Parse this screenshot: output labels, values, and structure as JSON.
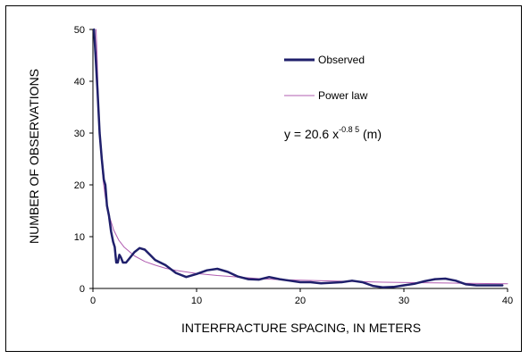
{
  "chart_data": {
    "type": "line",
    "title": "",
    "xlabel": "INTERFRACTURE SPACING, IN METERS",
    "ylabel": "NUMBER OF OBSERVATIONS",
    "xlim": [
      0,
      40
    ],
    "ylim": [
      0,
      50
    ],
    "xticks": [
      "0",
      "10",
      "20",
      "30",
      "40"
    ],
    "yticks": [
      "0",
      "10",
      "20",
      "30",
      "40",
      "50"
    ],
    "grid": false,
    "legend_position": "top-right",
    "annotation": {
      "prefix": "y = 20.6  x",
      "superscript": "-0.8 5",
      "suffix": " (m)"
    },
    "series": [
      {
        "name": "Observed",
        "color": "#1f1f6b",
        "x": [
          0.1,
          0.25,
          0.45,
          0.65,
          0.85,
          1.05,
          1.2,
          1.35,
          1.55,
          1.75,
          1.95,
          2.1,
          2.25,
          2.4,
          2.55,
          2.7,
          2.9,
          3.2,
          3.6,
          4.0,
          4.5,
          5.0,
          5.5,
          6.0,
          7.0,
          8.0,
          9.0,
          10.0,
          11.0,
          12.0,
          13.0,
          14.0,
          15.0,
          16.0,
          17.0,
          18.0,
          19.0,
          20.0,
          21.0,
          22.0,
          23.0,
          24.0,
          25.0,
          26.0,
          27.0,
          28.0,
          29.0,
          30.0,
          31.0,
          32.0,
          33.0,
          34.0,
          35.0,
          36.0,
          37.0,
          38.0,
          39.5
        ],
        "y": [
          50,
          45,
          38,
          30,
          25,
          21,
          20,
          16,
          14,
          11,
          9,
          8,
          5,
          5,
          6.5,
          6,
          5,
          5,
          6,
          7,
          7.8,
          7.5,
          6.5,
          5.5,
          4.5,
          3,
          2.2,
          2.8,
          3.5,
          3.8,
          3.2,
          2.3,
          1.8,
          1.7,
          2.2,
          1.8,
          1.5,
          1.2,
          1.2,
          1.0,
          1.1,
          1.2,
          1.5,
          1.2,
          0.5,
          0.2,
          0.3,
          0.6,
          0.9,
          1.4,
          1.8,
          1.9,
          1.5,
          0.8,
          0.6,
          0.6,
          0.6
        ]
      },
      {
        "name": "Power law",
        "color": "#b05cb0",
        "x": [
          0.3,
          0.4,
          0.5,
          0.6,
          0.7,
          0.8,
          1.0,
          1.2,
          1.5,
          2.0,
          2.5,
          3.0,
          4.0,
          5.0,
          6.0,
          7.0,
          8.0,
          10.0,
          12.0,
          14.0,
          16.0,
          18.0,
          20.0,
          24.0,
          28.0,
          32.0,
          36.0,
          40.0
        ],
        "y": [
          50,
          45.2,
          37.6,
          32.3,
          28.4,
          25.4,
          20.6,
          17.6,
          14.5,
          11.3,
          9.3,
          8.0,
          6.3,
          5.2,
          4.5,
          3.9,
          3.5,
          2.9,
          2.5,
          2.2,
          1.9,
          1.7,
          1.6,
          1.4,
          1.2,
          1.1,
          1.0,
          0.9
        ]
      }
    ]
  }
}
